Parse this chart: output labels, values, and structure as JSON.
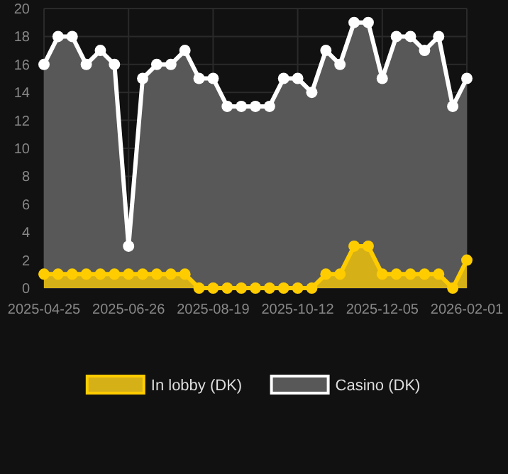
{
  "chart_data": {
    "type": "area",
    "categories": [
      "2025-04-25",
      null,
      null,
      null,
      null,
      null,
      "2025-06-26",
      null,
      null,
      null,
      null,
      null,
      "2025-08-19",
      null,
      null,
      null,
      null,
      null,
      "2025-10-12",
      null,
      null,
      null,
      null,
      null,
      "2025-12-05",
      null,
      null,
      null,
      null,
      null,
      "2026-02-01"
    ],
    "series": [
      {
        "name": "In lobby (DK)",
        "color": "#ffcc00",
        "values": [
          1,
          1,
          1,
          1,
          1,
          1,
          1,
          1,
          1,
          1,
          1,
          0,
          0,
          0,
          0,
          0,
          0,
          0,
          0,
          0,
          1,
          1,
          3,
          3,
          1,
          1,
          1,
          1,
          1,
          0,
          2
        ]
      },
      {
        "name": "Casino (DK)",
        "color": "#ffffff",
        "values": [
          16,
          18,
          18,
          16,
          17,
          16,
          3,
          15,
          16,
          16,
          17,
          15,
          15,
          13,
          13,
          13,
          13,
          15,
          15,
          14,
          17,
          16,
          19,
          19,
          15,
          18,
          18,
          17,
          18,
          13,
          15
        ]
      }
    ],
    "ylim": [
      0,
      20
    ],
    "yticks": [
      0,
      2,
      4,
      6,
      8,
      10,
      12,
      14,
      16,
      18,
      20
    ],
    "grid": true,
    "legend": "bottom",
    "marker": "circle",
    "line_style": "solid"
  }
}
